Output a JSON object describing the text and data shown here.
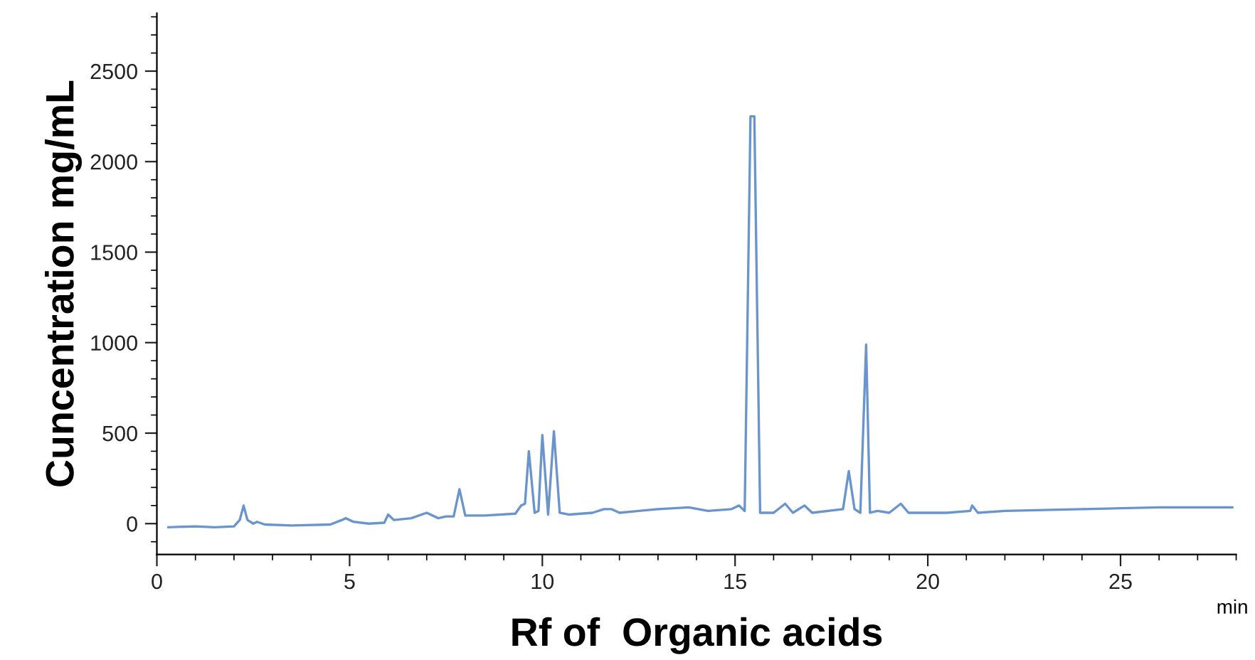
{
  "chart_data": {
    "type": "line",
    "xlabel": "Rf of  Organic acids",
    "ylabel": "Cuncentration mg/mL",
    "annotations": [
      "min"
    ],
    "xlim": [
      0,
      28
    ],
    "ylim": [
      -170,
      2820
    ],
    "xticks": [
      0,
      5,
      10,
      15,
      20,
      25
    ],
    "yticks": [
      0,
      500,
      1000,
      1500,
      2000,
      2500
    ],
    "grid": false,
    "legend": false,
    "marker": "none",
    "line_style": "solid",
    "series": [
      {
        "color": "#6a94cc",
        "x": [
          0.3,
          1,
          1.5,
          2.0,
          2.15,
          2.25,
          2.35,
          2.5,
          2.6,
          2.8,
          3.5,
          4.5,
          4.8,
          4.9,
          5.1,
          5.5,
          5.9,
          6.0,
          6.15,
          6.6,
          7.0,
          7.3,
          7.5,
          7.7,
          7.85,
          8.0,
          8.5,
          9.3,
          9.45,
          9.55,
          9.65,
          9.8,
          9.9,
          10.0,
          10.15,
          10.3,
          10.45,
          10.7,
          11.3,
          11.6,
          11.8,
          12.0,
          12.5,
          13.0,
          13.8,
          14.3,
          14.9,
          15.1,
          15.25,
          15.4,
          15.5,
          15.65,
          16.0,
          16.3,
          16.5,
          16.8,
          17.0,
          17.8,
          17.95,
          18.1,
          18.25,
          18.4,
          18.5,
          18.7,
          19.0,
          19.3,
          19.5,
          20.5,
          21.1,
          21.15,
          21.3,
          22.0,
          23,
          24,
          25,
          26,
          27,
          27.9
        ],
        "values": [
          -20,
          -15,
          -20,
          -15,
          20,
          100,
          20,
          0,
          10,
          -5,
          -10,
          -5,
          20,
          30,
          10,
          0,
          5,
          50,
          20,
          30,
          60,
          30,
          40,
          40,
          190,
          45,
          45,
          55,
          100,
          110,
          400,
          60,
          70,
          490,
          50,
          510,
          60,
          50,
          60,
          80,
          80,
          60,
          70,
          80,
          90,
          70,
          80,
          100,
          70,
          2250,
          2250,
          60,
          60,
          110,
          60,
          100,
          60,
          80,
          290,
          80,
          60,
          990,
          60,
          70,
          60,
          110,
          60,
          60,
          70,
          100,
          60,
          70,
          75,
          80,
          85,
          90,
          90,
          90
        ]
      }
    ]
  }
}
